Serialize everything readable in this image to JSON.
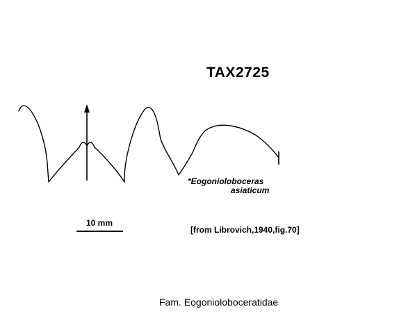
{
  "title": "TAX2725",
  "species": {
    "line1": "*Eogonioloboceras",
    "line2": "asiaticum"
  },
  "scale": {
    "label": "10 mm"
  },
  "source": "[from Librovich,1940,fig.70]",
  "family": "Fam. Eogonioloboceratidae",
  "colors": {
    "ink": "#000000",
    "background": "#ffffff"
  }
}
